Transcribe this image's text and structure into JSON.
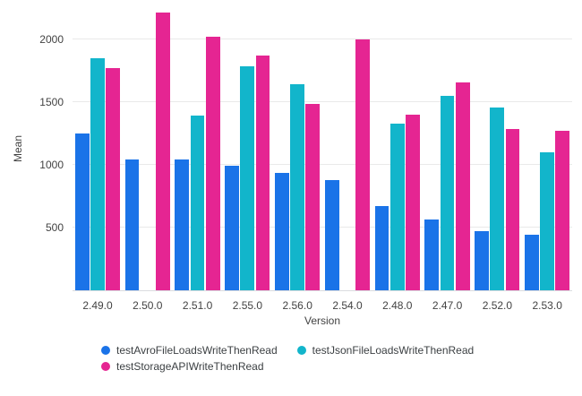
{
  "chart_data": {
    "type": "bar",
    "title": "",
    "xlabel": "Version",
    "ylabel": "Mean",
    "categories": [
      "2.49.0",
      "2.50.0",
      "2.51.0",
      "2.55.0",
      "2.56.0",
      "2.54.0",
      "2.48.0",
      "2.47.0",
      "2.52.0",
      "2.53.0"
    ],
    "series": [
      {
        "name": "testAvroFileLoadsWriteThenRead",
        "color": "#1a73e8",
        "values": [
          1250,
          1045,
          1040,
          995,
          935,
          880,
          670,
          565,
          470,
          445
        ]
      },
      {
        "name": "testJsonFileLoadsWriteThenRead",
        "color": "#12b5cb",
        "values": [
          1850,
          null,
          1395,
          1785,
          1645,
          null,
          1330,
          1550,
          1460,
          1100
        ]
      },
      {
        "name": "testStorageAPIWriteThenRead",
        "color": "#e52592",
        "values": [
          1770,
          2215,
          2025,
          1870,
          1485,
          2000,
          1400,
          1660,
          1285,
          1275
        ]
      }
    ],
    "ylim": [
      0,
      2250
    ],
    "yticks": [
      500,
      1000,
      1500,
      2000
    ],
    "grid": true,
    "legend_position": "bottom"
  },
  "colors": {
    "grid": "#e9e9e9",
    "axis_line": "#dadce0",
    "tick_text": "#424242",
    "legend_text": "#3c4043",
    "background": "#ffffff"
  }
}
